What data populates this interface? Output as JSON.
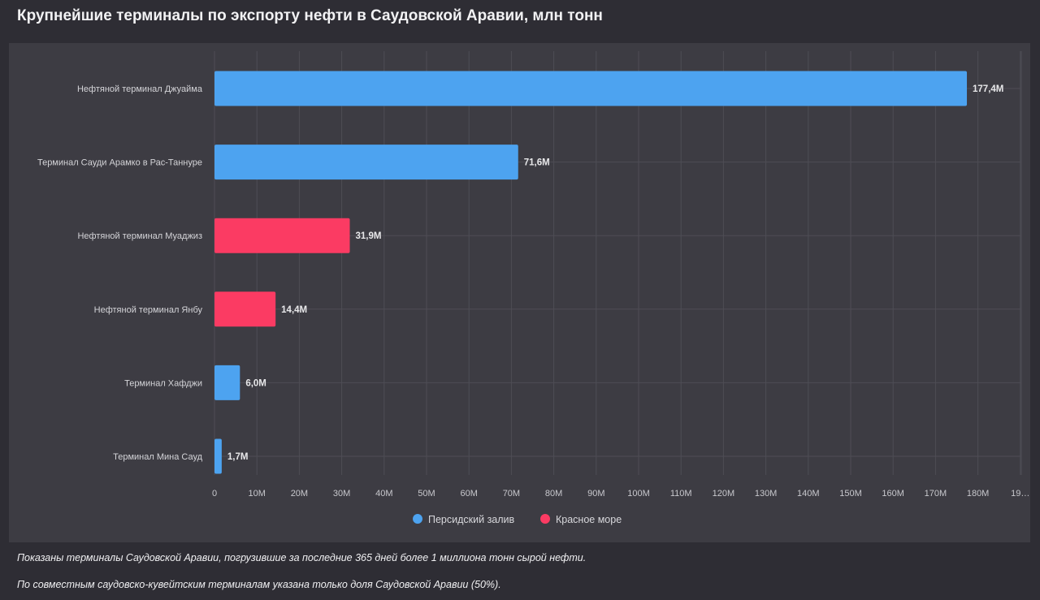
{
  "title": "Крупнейшие терминалы по экспорту нефти в Саудовской Аравии, млн тонн",
  "notes": [
    "Показаны терминалы Саудовской Аравии, погрузившие за последние 365 дней более 1 миллиона тонн сырой нефти.",
    "По совместным саудовско-кувейтским терминалам указана только доля Саудовской Аравии (50%)."
  ],
  "colors": {
    "persian_gulf": "#4da3f0",
    "red_sea": "#fb3b63"
  },
  "chart_data": {
    "type": "bar",
    "orientation": "horizontal",
    "grid": true,
    "legend_position": "bottom",
    "xlim": [
      0,
      190
    ],
    "x_ticks": [
      "0",
      "10M",
      "20M",
      "30M",
      "40M",
      "50M",
      "60M",
      "70M",
      "80M",
      "90M",
      "100M",
      "110M",
      "120M",
      "130M",
      "140M",
      "150M",
      "160M",
      "170M",
      "180M",
      "19…"
    ],
    "legend": [
      {
        "name": "Персидский залив",
        "color": "#4da3f0"
      },
      {
        "name": "Красное море",
        "color": "#fb3b63"
      }
    ],
    "bars": [
      {
        "category": "Нефтяной терминал Джуайма",
        "value": 177.4,
        "label": "177,4M",
        "region": "Персидский залив",
        "color": "#4da3f0"
      },
      {
        "category": "Терминал Сауди Арамко в Рас-Таннуре",
        "value": 71.6,
        "label": "71,6M",
        "region": "Персидский залив",
        "color": "#4da3f0"
      },
      {
        "category": "Нефтяной терминал Муаджиз",
        "value": 31.9,
        "label": "31,9M",
        "region": "Красное море",
        "color": "#fb3b63"
      },
      {
        "category": "Нефтяной терминал Янбу",
        "value": 14.4,
        "label": "14,4M",
        "region": "Красное море",
        "color": "#fb3b63"
      },
      {
        "category": "Терминал Хафджи",
        "value": 6.0,
        "label": "6,0M",
        "region": "Персидский залив",
        "color": "#4da3f0"
      },
      {
        "category": "Терминал Мина Сауд",
        "value": 1.7,
        "label": "1,7M",
        "region": "Персидский залив",
        "color": "#4da3f0"
      }
    ]
  }
}
